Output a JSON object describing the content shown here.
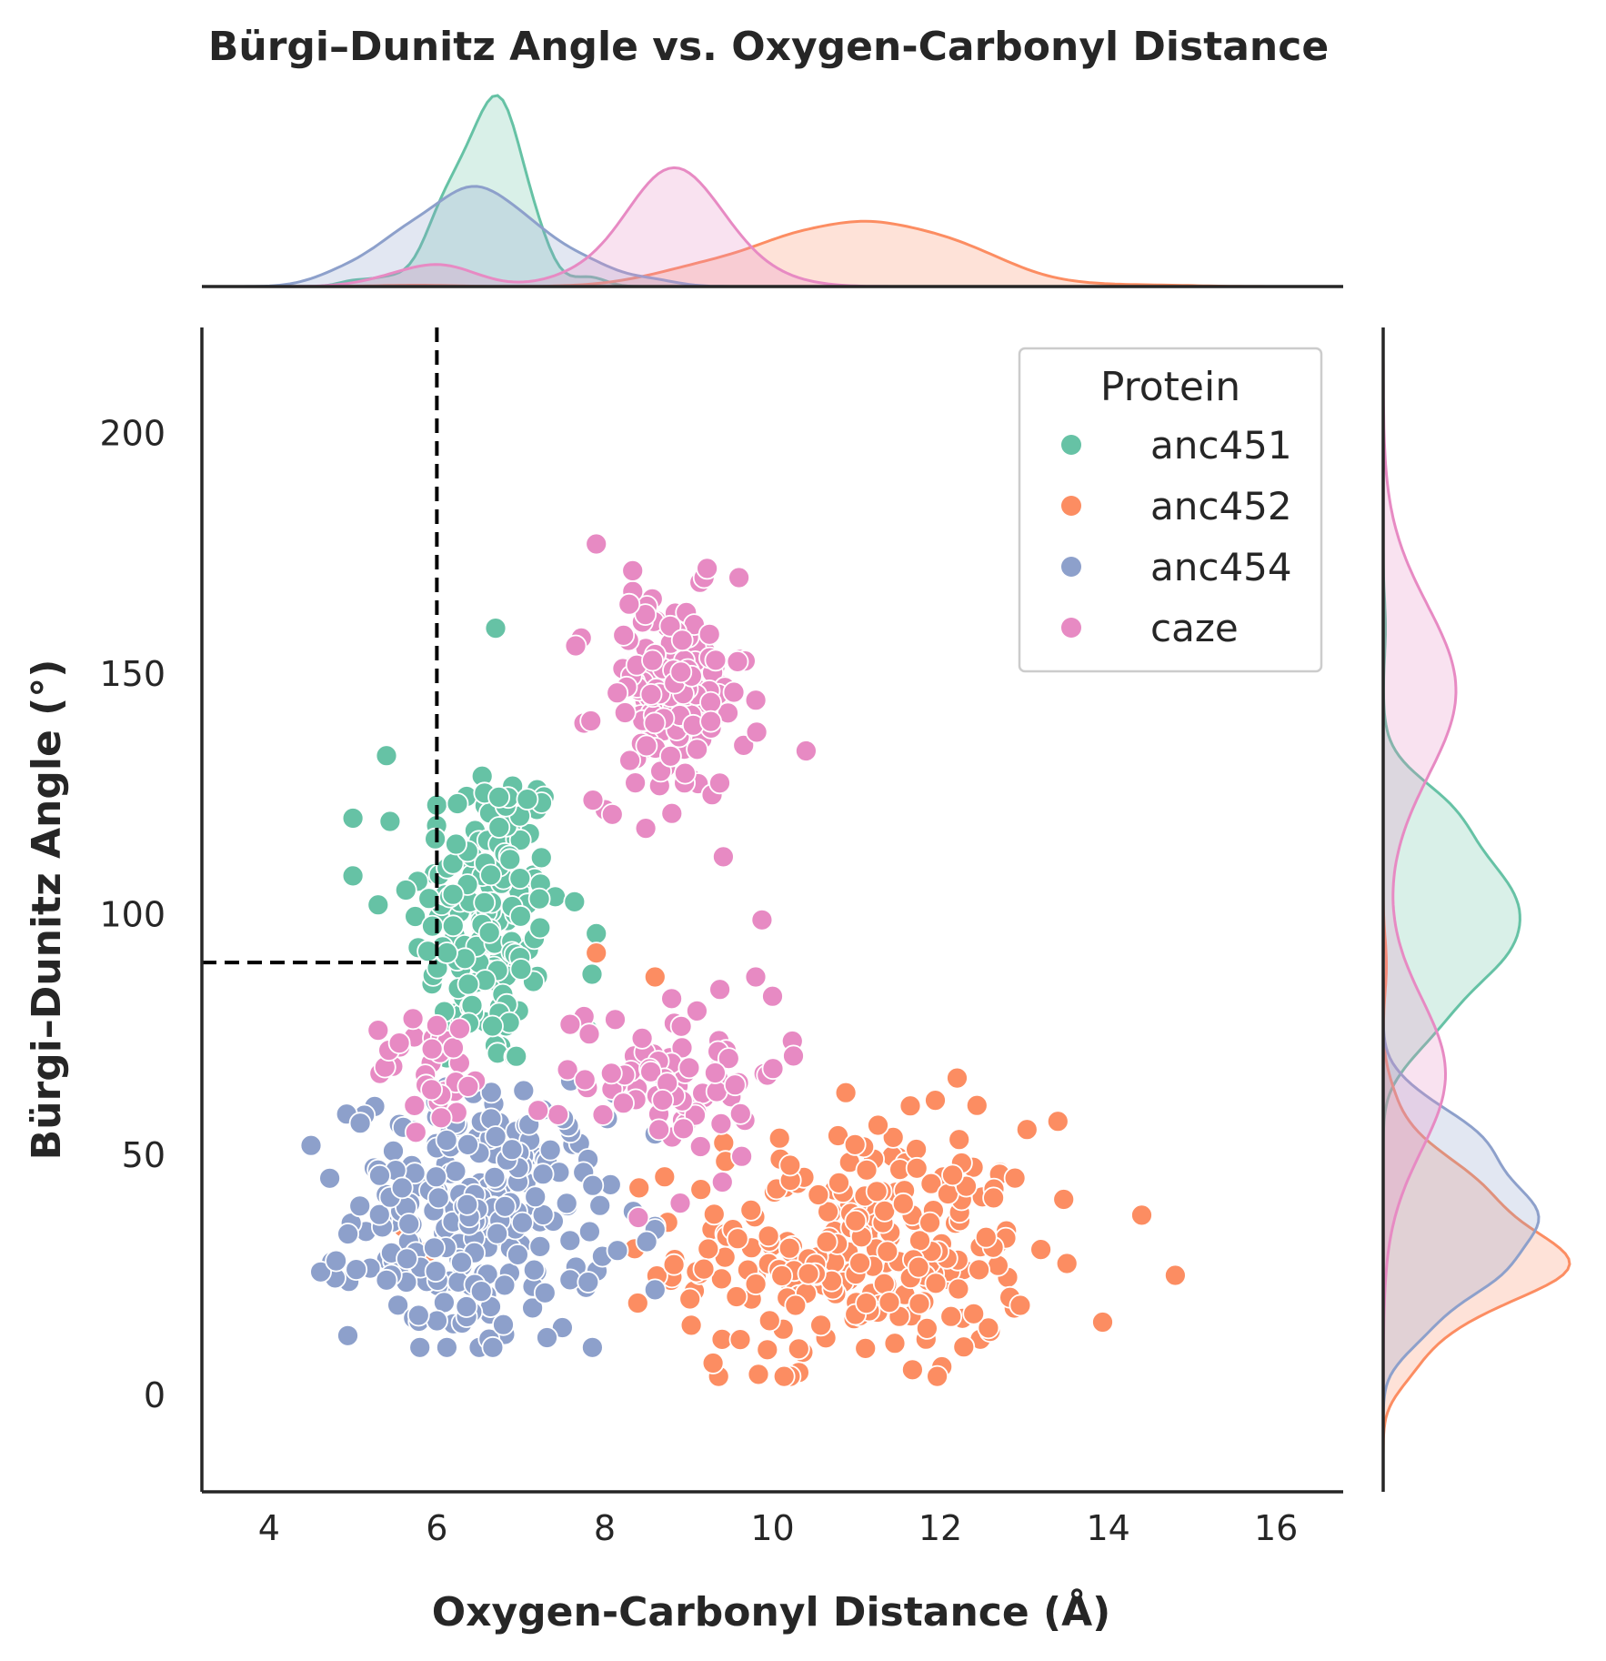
{
  "chart_data": {
    "type": "scatter",
    "title": "Bürgi–Dunitz Angle vs. Oxygen-Carbonyl Distance",
    "xlabel": "Oxygen-Carbonyl Distance (Å)",
    "ylabel": "Bürgi–Dunitz Angle (°)",
    "xlim": [
      3.2,
      16.8
    ],
    "ylim": [
      -20,
      222
    ],
    "xticks": [
      "4",
      "6",
      "8",
      "10",
      "12",
      "14",
      "16"
    ],
    "yticks": [
      "0",
      "50",
      "100",
      "150",
      "200"
    ],
    "grid": false,
    "marginal": "kde",
    "threshold_lines": {
      "x": 6,
      "y": 90,
      "style": "dashed"
    },
    "legend": {
      "title": "Protein",
      "placement": "top-right",
      "entries": [
        "anc451",
        "anc452",
        "anc454",
        "caze"
      ]
    },
    "series": [
      {
        "name": "anc451",
        "color": "#66c2a5",
        "cluster": {
          "x_mean": 6.6,
          "x_sd": 0.45,
          "y_mean": 100,
          "y_sd": 17,
          "count": 170
        },
        "x_range": [
          5.0,
          7.9
        ],
        "y_range": [
          62,
          160
        ],
        "outliers": [
          [
            6.7,
            159.5
          ],
          [
            5.0,
            120
          ],
          [
            5.3,
            102
          ],
          [
            7.9,
            96
          ],
          [
            7.8,
            76
          ],
          [
            5.4,
            133
          ]
        ]
      },
      {
        "name": "anc452",
        "color": "#fc8d62",
        "cluster": {
          "x_mean": 11.0,
          "x_sd": 1.05,
          "y_mean": 30,
          "y_sd": 13,
          "count": 260
        },
        "x_range": [
          5.5,
          14.8
        ],
        "y_range": [
          4,
          92
        ],
        "outliers": [
          [
            14.8,
            25
          ],
          [
            14.4,
            37.5
          ],
          [
            13.4,
            57
          ],
          [
            12.2,
            66
          ],
          [
            7.9,
            92
          ],
          [
            8.6,
            87
          ],
          [
            5.6,
            35
          ],
          [
            5.9,
            30
          ]
        ]
      },
      {
        "name": "anc454",
        "color": "#8da0cb",
        "cluster": {
          "x_mean": 6.5,
          "x_sd": 0.75,
          "y_mean": 37,
          "y_sd": 13,
          "count": 250
        },
        "x_range": [
          4.5,
          8.6
        ],
        "y_range": [
          10,
          75
        ],
        "outliers": [
          [
            4.5,
            52
          ],
          [
            8.6,
            22
          ],
          [
            8.5,
            32
          ],
          [
            4.8,
            28
          ],
          [
            5.4,
            24
          ]
        ]
      },
      {
        "name": "caze",
        "color": "#e78ac3",
        "clusters": [
          {
            "x_mean": 8.8,
            "x_sd": 0.45,
            "y_mean": 145,
            "y_sd": 11,
            "count": 150
          },
          {
            "x_mean": 8.8,
            "x_sd": 0.65,
            "y_mean": 68,
            "y_sd": 9,
            "count": 80
          },
          {
            "x_mean": 6.0,
            "x_sd": 0.35,
            "y_mean": 68,
            "y_sd": 6,
            "count": 35
          }
        ],
        "x_range": [
          5.3,
          10.5
        ],
        "y_range": [
          36,
          177
        ],
        "outliers": [
          [
            7.9,
            177
          ],
          [
            9.6,
            170
          ],
          [
            10.4,
            134
          ],
          [
            9.8,
            87
          ],
          [
            10.0,
            83
          ],
          [
            8.3,
            132
          ],
          [
            8.9,
            40
          ],
          [
            8.4,
            37
          ],
          [
            8.8,
            121
          ]
        ]
      }
    ]
  }
}
